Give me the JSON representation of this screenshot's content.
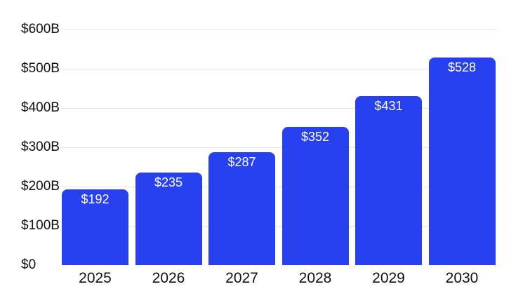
{
  "chart_data": {
    "type": "bar",
    "title": "",
    "categories": [
      "2025",
      "2026",
      "2027",
      "2028",
      "2029",
      "2030"
    ],
    "values": [
      192,
      235,
      287,
      352,
      431,
      528
    ],
    "value_labels": [
      "$192",
      "$235",
      "$287",
      "$352",
      "$431",
      "$528"
    ],
    "y_axis": {
      "tick_values": [
        0,
        100,
        200,
        300,
        400,
        500,
        600
      ],
      "tick_labels": [
        "$0",
        "$100B",
        "$200B",
        "$300B",
        "$400B",
        "$500B",
        "$600B"
      ],
      "range": [
        0,
        600
      ]
    },
    "xlabel": "",
    "ylabel": "",
    "grid": "horizontal-only, no zero baseline",
    "legend": "none",
    "bar_shape": "rounded-top",
    "colors": {
      "bar": "#2841f0",
      "value_label": "#ffffff",
      "axis_label": "#111111",
      "gridline": "#e7e7e7",
      "background": "#ffffff"
    }
  }
}
